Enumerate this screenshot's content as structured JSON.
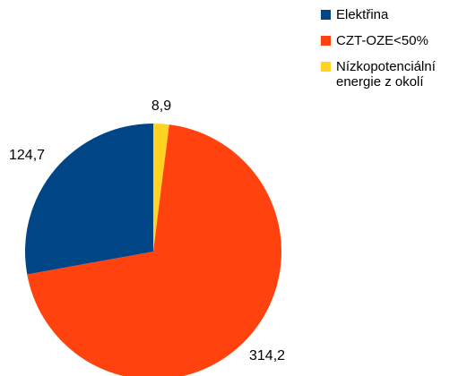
{
  "chart_data": {
    "type": "pie",
    "title": "",
    "categories": [
      "Elektřina",
      "CZT-OZE<50%",
      "Nízkopotenciální\nenergie z okolí"
    ],
    "values": [
      124.7,
      314.2,
      8.9
    ],
    "value_labels": [
      "124,7",
      "314,2",
      "8,9"
    ],
    "colors": [
      "#004586",
      "#FF420E",
      "#FFD320"
    ],
    "legend_position": "top-right"
  }
}
